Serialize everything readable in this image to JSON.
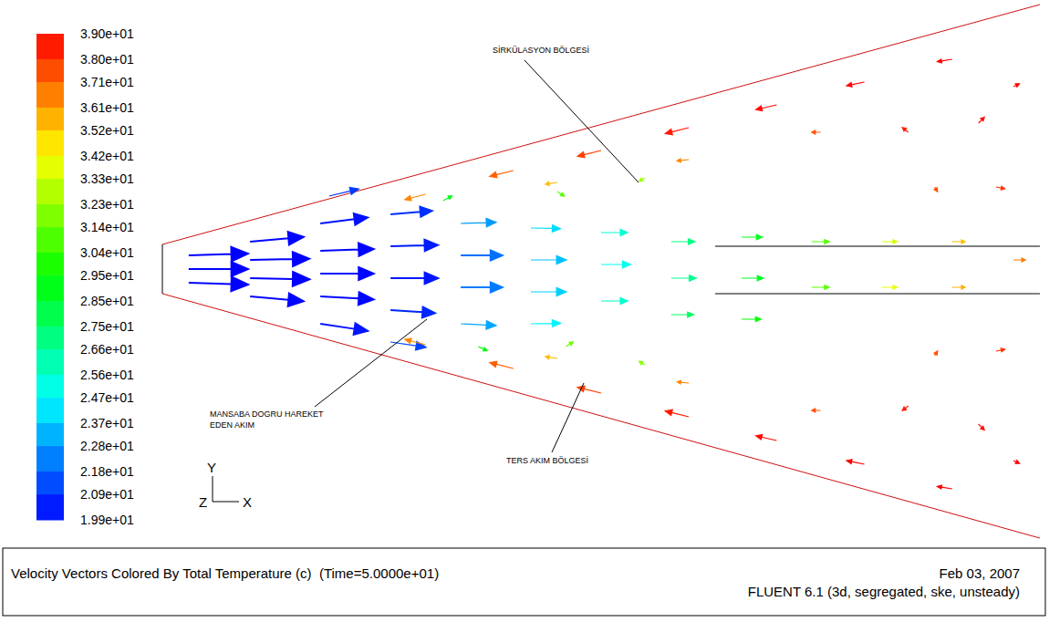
{
  "chart_data": {
    "type": "vector_field",
    "title": "Velocity Vectors Colored By Total Temperature (c)  (Time=5.0000e+01)",
    "date": "Feb 03, 2007",
    "solver": "FLUENT 6.1 (3d, segregated, ske, unsteady)",
    "xlim": [
      0,
      10
    ],
    "ylim": [
      -3,
      3
    ],
    "tick_labels": false,
    "colorbar": {
      "range": [
        19.9,
        39.0
      ],
      "ticks": [
        {
          "value": 39.0,
          "label": "3.90e+01"
        },
        {
          "value": 38.0,
          "label": "3.80e+01"
        },
        {
          "value": 37.1,
          "label": "3.71e+01"
        },
        {
          "value": 36.1,
          "label": "3.61e+01"
        },
        {
          "value": 35.2,
          "label": "3.52e+01"
        },
        {
          "value": 34.2,
          "label": "3.42e+01"
        },
        {
          "value": 33.3,
          "label": "3.33e+01"
        },
        {
          "value": 32.3,
          "label": "3.23e+01"
        },
        {
          "value": 31.4,
          "label": "3.14e+01"
        },
        {
          "value": 30.4,
          "label": "3.04e+01"
        },
        {
          "value": 29.5,
          "label": "2.95e+01"
        },
        {
          "value": 28.5,
          "label": "2.85e+01"
        },
        {
          "value": 27.5,
          "label": "2.75e+01"
        },
        {
          "value": 26.6,
          "label": "2.66e+01"
        },
        {
          "value": 25.6,
          "label": "2.56e+01"
        },
        {
          "value": 24.7,
          "label": "2.47e+01"
        },
        {
          "value": 23.7,
          "label": "2.37e+01"
        },
        {
          "value": 22.8,
          "label": "2.28e+01"
        },
        {
          "value": 21.8,
          "label": "2.18e+01"
        },
        {
          "value": 20.9,
          "label": "2.09e+01"
        },
        {
          "value": 19.9,
          "label": "1.99e+01"
        }
      ]
    },
    "axes_labels": [
      "Y",
      "Z",
      "X"
    ],
    "annotations": [
      {
        "text": "SİRKÜLASYON BÖLGESİ"
      },
      {
        "text": "MANSABA DOGRU HAREKET EDEN AKIM"
      },
      {
        "text": "TERS AKIM BÖLGESİ"
      }
    ],
    "geometry": {
      "walls": [
        {
          "x": [
            0,
            10
          ],
          "y": [
            0.27,
            2.9
          ]
        },
        {
          "x": [
            0,
            10
          ],
          "y": [
            -0.27,
            -2.95
          ]
        }
      ],
      "inlet": {
        "x": [
          0,
          0
        ],
        "y": [
          -0.27,
          0.27
        ]
      },
      "lines": [
        {
          "x": [
            6.3,
            10
          ],
          "y": [
            0.25,
            0.25
          ]
        },
        {
          "x": [
            6.3,
            10
          ],
          "y": [
            -0.27,
            -0.27
          ]
        }
      ]
    },
    "vectors": [
      {
        "x": 0.3,
        "y": 0.15,
        "u": 10,
        "v": 0.3,
        "t": 19.9
      },
      {
        "x": 0.3,
        "y": -0.15,
        "u": 10,
        "v": -0.3,
        "t": 19.9
      },
      {
        "x": 0.3,
        "y": 0,
        "u": 10,
        "v": 0,
        "t": 19.9
      },
      {
        "x": 1.0,
        "y": 0.3,
        "u": 9,
        "v": 0.8,
        "t": 20.0
      },
      {
        "x": 1.0,
        "y": 0.1,
        "u": 10,
        "v": 0.2,
        "t": 19.9
      },
      {
        "x": 1.0,
        "y": -0.1,
        "u": 10,
        "v": -0.2,
        "t": 19.9
      },
      {
        "x": 1.0,
        "y": -0.3,
        "u": 9,
        "v": -0.8,
        "t": 20.0
      },
      {
        "x": 1.8,
        "y": 0.5,
        "u": 8,
        "v": 1.0,
        "t": 20.2
      },
      {
        "x": 1.8,
        "y": 0.2,
        "u": 9,
        "v": 0.3,
        "t": 20.0
      },
      {
        "x": 1.8,
        "y": -0.05,
        "u": 9,
        "v": 0,
        "t": 20.0
      },
      {
        "x": 1.8,
        "y": -0.3,
        "u": 9,
        "v": -0.5,
        "t": 20.0
      },
      {
        "x": 1.8,
        "y": -0.6,
        "u": 8,
        "v": -1.2,
        "t": 20.3
      },
      {
        "x": 1.9,
        "y": 0.8,
        "u": 5,
        "v": 1.2,
        "t": 21.0
      },
      {
        "x": 2.6,
        "y": 0.6,
        "u": 7,
        "v": 0.6,
        "t": 20.8
      },
      {
        "x": 2.6,
        "y": 0.25,
        "u": 8,
        "v": 0.2,
        "t": 20.4
      },
      {
        "x": 2.6,
        "y": -0.1,
        "u": 8,
        "v": 0,
        "t": 20.3
      },
      {
        "x": 2.6,
        "y": -0.45,
        "u": 7.5,
        "v": -0.5,
        "t": 20.6
      },
      {
        "x": 2.6,
        "y": -0.8,
        "u": 6,
        "v": -0.9,
        "t": 21.2
      },
      {
        "x": 3.4,
        "y": 0.5,
        "u": 6,
        "v": 0.2,
        "t": 22.8
      },
      {
        "x": 3.4,
        "y": 0.15,
        "u": 7,
        "v": 0,
        "t": 22.0
      },
      {
        "x": 3.4,
        "y": -0.2,
        "u": 7,
        "v": 0,
        "t": 22.2
      },
      {
        "x": 3.4,
        "y": -0.6,
        "u": 6,
        "v": -0.3,
        "t": 23.0
      },
      {
        "x": 4.2,
        "y": 0.45,
        "u": 5,
        "v": -0.1,
        "t": 24.0
      },
      {
        "x": 4.2,
        "y": 0.1,
        "u": 6,
        "v": 0,
        "t": 23.5
      },
      {
        "x": 4.2,
        "y": -0.25,
        "u": 6,
        "v": 0,
        "t": 23.8
      },
      {
        "x": 4.2,
        "y": -0.6,
        "u": 5,
        "v": 0.1,
        "t": 24.5
      },
      {
        "x": 5.0,
        "y": 0.4,
        "u": 4.5,
        "v": 0,
        "t": 25.5
      },
      {
        "x": 5.0,
        "y": 0.05,
        "u": 5,
        "v": 0,
        "t": 25.0
      },
      {
        "x": 5.0,
        "y": -0.35,
        "u": 4.5,
        "v": 0,
        "t": 25.6
      },
      {
        "x": 5.8,
        "y": 0.3,
        "u": 4,
        "v": 0,
        "t": 27.0
      },
      {
        "x": 5.8,
        "y": -0.1,
        "u": 4.2,
        "v": 0,
        "t": 26.8
      },
      {
        "x": 5.8,
        "y": -0.5,
        "u": 3.8,
        "v": 0,
        "t": 27.6
      },
      {
        "x": 6.6,
        "y": 0.35,
        "u": 3.5,
        "v": 0,
        "t": 29.0
      },
      {
        "x": 6.6,
        "y": -0.1,
        "u": 3.7,
        "v": 0,
        "t": 28.8
      },
      {
        "x": 6.6,
        "y": -0.55,
        "u": 3.3,
        "v": 0,
        "t": 29.5
      },
      {
        "x": 7.4,
        "y": 0.3,
        "u": 3,
        "v": 0,
        "t": 31.0
      },
      {
        "x": 7.4,
        "y": -0.2,
        "u": 3,
        "v": 0,
        "t": 31.2
      },
      {
        "x": 8.2,
        "y": 0.3,
        "u": 2.6,
        "v": 0,
        "t": 33.5
      },
      {
        "x": 8.2,
        "y": -0.2,
        "u": 2.6,
        "v": 0,
        "t": 33.8
      },
      {
        "x": 9.0,
        "y": 0.3,
        "u": 2.2,
        "v": 0,
        "t": 35.5
      },
      {
        "x": 9.0,
        "y": -0.2,
        "u": 2.2,
        "v": 0,
        "t": 35.8
      },
      {
        "x": 9.7,
        "y": 0.1,
        "u": 2,
        "v": 0,
        "t": 36.8
      },
      {
        "x": 3.2,
        "y": 0.75,
        "u": 1.5,
        "v": 0.8,
        "t": 29.0
      },
      {
        "x": 3.6,
        "y": -0.85,
        "u": 1.5,
        "v": -0.7,
        "t": 29.5
      },
      {
        "x": 4.5,
        "y": 0.85,
        "u": 1.2,
        "v": -0.8,
        "t": 31.0
      },
      {
        "x": 4.6,
        "y": -0.85,
        "u": 1.2,
        "v": 0.8,
        "t": 31.5
      },
      {
        "x": 5.5,
        "y": 1.0,
        "u": -1.0,
        "v": -0.6,
        "t": 32.5
      },
      {
        "x": 5.5,
        "y": -1.05,
        "u": -1.0,
        "v": 0.6,
        "t": 32.0
      },
      {
        "x": 3.0,
        "y": 0.82,
        "u": -3.5,
        "v": -0.9,
        "t": 36.5
      },
      {
        "x": 4.0,
        "y": 1.08,
        "u": -4,
        "v": -1.0,
        "t": 37.2
      },
      {
        "x": 5.0,
        "y": 1.3,
        "u": -4,
        "v": -1.0,
        "t": 37.8
      },
      {
        "x": 6.0,
        "y": 1.55,
        "u": -4,
        "v": -1.0,
        "t": 38.5
      },
      {
        "x": 7.0,
        "y": 1.8,
        "u": -3.5,
        "v": -0.8,
        "t": 38.8
      },
      {
        "x": 8.0,
        "y": 2.05,
        "u": -3,
        "v": -0.6,
        "t": 39.0
      },
      {
        "x": 9.0,
        "y": 2.3,
        "u": -2.5,
        "v": -0.4,
        "t": 39.0
      },
      {
        "x": 4.5,
        "y": 0.95,
        "u": -2,
        "v": -0.3,
        "t": 35.5
      },
      {
        "x": 6.0,
        "y": 1.2,
        "u": -2,
        "v": -0.2,
        "t": 36.5
      },
      {
        "x": 7.5,
        "y": 1.5,
        "u": -1.5,
        "v": 0,
        "t": 37.5
      },
      {
        "x": 3.0,
        "y": -0.83,
        "u": -3.5,
        "v": 0.9,
        "t": 36.5
      },
      {
        "x": 4.0,
        "y": -1.09,
        "u": -4,
        "v": 1.0,
        "t": 37.2
      },
      {
        "x": 5.0,
        "y": -1.36,
        "u": -4,
        "v": 1.0,
        "t": 37.8
      },
      {
        "x": 6.0,
        "y": -1.62,
        "u": -4,
        "v": 1.0,
        "t": 38.5
      },
      {
        "x": 7.0,
        "y": -1.88,
        "u": -3.5,
        "v": 0.8,
        "t": 38.8
      },
      {
        "x": 8.0,
        "y": -2.14,
        "u": -3,
        "v": 0.6,
        "t": 39.0
      },
      {
        "x": 9.0,
        "y": -2.41,
        "u": -2.5,
        "v": 0.4,
        "t": 39.0
      },
      {
        "x": 4.5,
        "y": -0.98,
        "u": -2,
        "v": 0.3,
        "t": 35.5
      },
      {
        "x": 6.0,
        "y": -1.25,
        "u": -2,
        "v": 0.2,
        "t": 36.5
      },
      {
        "x": 7.5,
        "y": -1.55,
        "u": -1.5,
        "v": 0,
        "t": 37.5
      },
      {
        "x": 8.5,
        "y": 1.5,
        "u": -1,
        "v": 0.8,
        "t": 38.5
      },
      {
        "x": 9.3,
        "y": 1.6,
        "u": 1,
        "v": 1,
        "t": 38.8
      },
      {
        "x": 9.5,
        "y": 0.9,
        "u": 1.5,
        "v": -0.3,
        "t": 38.0
      },
      {
        "x": 8.8,
        "y": 0.9,
        "u": 0.5,
        "v": -0.8,
        "t": 37.5
      },
      {
        "x": 8.5,
        "y": -1.5,
        "u": -1,
        "v": -0.8,
        "t": 38.5
      },
      {
        "x": 9.3,
        "y": -1.7,
        "u": 1,
        "v": -1,
        "t": 38.8
      },
      {
        "x": 9.5,
        "y": -0.9,
        "u": 1.5,
        "v": 0.3,
        "t": 38.0
      },
      {
        "x": 8.8,
        "y": -0.95,
        "u": 0.5,
        "v": 0.8,
        "t": 37.5
      },
      {
        "x": 9.7,
        "y": 2.0,
        "u": 1,
        "v": 0.5,
        "t": 39.0
      },
      {
        "x": 9.7,
        "y": -2.1,
        "u": 1,
        "v": -0.5,
        "t": 39.0
      }
    ]
  }
}
